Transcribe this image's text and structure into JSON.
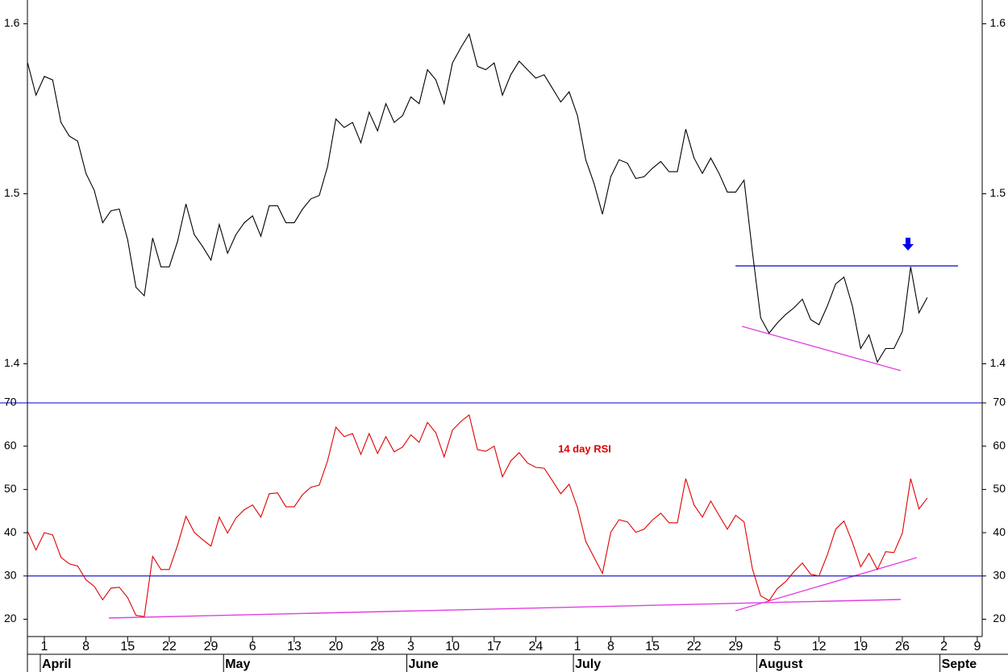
{
  "chart_data": [
    {
      "type": "line",
      "panel": "price",
      "color": "#000000",
      "values": [
        1.577,
        1.558,
        1.569,
        1.567,
        1.542,
        1.534,
        1.531,
        1.512,
        1.502,
        1.483,
        1.49,
        1.491,
        1.473,
        1.445,
        1.44,
        1.474,
        1.457,
        1.457,
        1.472,
        1.494,
        1.476,
        1.469,
        1.461,
        1.482,
        1.465,
        1.476,
        1.483,
        1.487,
        1.475,
        1.493,
        1.493,
        1.483,
        1.483,
        1.491,
        1.497,
        1.499,
        1.516,
        1.544,
        1.539,
        1.542,
        1.53,
        1.548,
        1.537,
        1.553,
        1.542,
        1.546,
        1.557,
        1.553,
        1.573,
        1.567,
        1.553,
        1.577,
        1.586,
        1.594,
        1.575,
        1.573,
        1.577,
        1.558,
        1.57,
        1.578,
        1.573,
        1.568,
        1.57,
        1.562,
        1.554,
        1.56,
        1.546,
        1.52,
        1.506,
        1.488,
        1.51,
        1.52,
        1.518,
        1.509,
        1.51,
        1.515,
        1.519,
        1.513,
        1.513,
        1.538,
        1.521,
        1.512,
        1.521,
        1.512,
        1.501,
        1.501,
        1.508,
        1.466,
        1.427,
        1.418,
        1.424,
        1.429,
        1.433,
        1.438,
        1.426,
        1.423,
        1.434,
        1.447,
        1.451,
        1.434,
        1.409,
        1.417,
        1.401,
        1.409,
        1.409,
        1.419,
        1.457,
        1.43,
        1.439,
        null,
        null,
        null,
        null,
        null,
        null
      ],
      "ylim": [
        1.377,
        1.614
      ],
      "yticks": [
        1.4,
        1.5,
        1.6
      ]
    },
    {
      "type": "line",
      "panel": "rsi",
      "color": "#e00000",
      "annotation": "14 day RSI",
      "values": [
        40.3,
        36,
        40,
        39.5,
        34.3,
        32.8,
        32.3,
        29.1,
        27.6,
        24.5,
        27.2,
        27.4,
        25,
        20.9,
        20.6,
        34.5,
        31.5,
        31.5,
        37.1,
        43.8,
        40.1,
        38.4,
        36.9,
        43.6,
        39.9,
        43.4,
        45.3,
        46.4,
        43.6,
        49,
        49.2,
        46,
        46,
        48.8,
        50.5,
        51,
        56.6,
        64.4,
        62.2,
        62.9,
        58.1,
        62.9,
        58.3,
        62.2,
        58.7,
        59.8,
        62.6,
        60.9,
        65.5,
        63.1,
        57.5,
        63.7,
        65.7,
        67.2,
        59.2,
        58.8,
        60,
        52.9,
        56.6,
        58.5,
        56.1,
        55.1,
        54.9,
        52,
        49,
        51.2,
        45.8,
        38,
        34.3,
        30.6,
        40.1,
        43,
        42.5,
        40.1,
        40.8,
        42.9,
        44.5,
        42.3,
        42.3,
        52.5,
        46.4,
        43.6,
        47.3,
        44,
        40.8,
        44,
        42.5,
        31.7,
        25.4,
        24.3,
        27.1,
        28.7,
        31,
        33,
        30.4,
        30,
        34.9,
        40.8,
        42.7,
        37.8,
        32.1,
        35.2,
        31.5,
        35.6,
        35.4,
        39.9,
        52.5,
        45.5,
        48,
        null,
        null,
        null,
        null,
        null,
        null
      ],
      "ylim": [
        16,
        70
      ],
      "yticks": [
        20,
        30,
        40,
        50,
        60,
        70
      ],
      "guide_lines": [
        70,
        30
      ],
      "guide_color": "#0000cc",
      "categories": [
        null,
        null,
        "1",
        null,
        null,
        null,
        null,
        "8",
        null,
        null,
        null,
        null,
        "15",
        null,
        null,
        null,
        null,
        "22",
        null,
        null,
        null,
        null,
        "29",
        null,
        null,
        null,
        null,
        "6",
        null,
        null,
        null,
        null,
        "13",
        null,
        null,
        null,
        null,
        "20",
        null,
        null,
        null,
        null,
        "28",
        null,
        null,
        null,
        "3",
        null,
        null,
        null,
        null,
        "10",
        null,
        null,
        null,
        null,
        "17",
        null,
        null,
        null,
        null,
        "24",
        null,
        null,
        null,
        null,
        "1",
        null,
        null,
        null,
        "8",
        null,
        null,
        null,
        null,
        "15",
        null,
        null,
        null,
        null,
        "22",
        null,
        null,
        null,
        null,
        "29",
        null,
        null,
        null,
        null,
        "5",
        null,
        null,
        null,
        null,
        "12",
        null,
        null,
        null,
        null,
        "19",
        null,
        null,
        null,
        null,
        "26",
        null,
        null,
        null,
        null,
        "2",
        null,
        null,
        null,
        "9"
      ],
      "month_labels": [
        null,
        null,
        "April",
        null,
        null,
        null,
        null,
        null,
        null,
        null,
        null,
        null,
        null,
        null,
        null,
        null,
        null,
        null,
        null,
        null,
        null,
        null,
        null,
        null,
        "May",
        null,
        null,
        null,
        null,
        null,
        null,
        null,
        null,
        null,
        null,
        null,
        null,
        null,
        null,
        null,
        null,
        null,
        null,
        null,
        null,
        null,
        "June",
        null,
        null,
        null,
        null,
        null,
        null,
        null,
        null,
        null,
        null,
        null,
        null,
        null,
        null,
        null,
        null,
        null,
        null,
        null,
        "July",
        null,
        null,
        null,
        null,
        null,
        null,
        null,
        null,
        null,
        null,
        null,
        null,
        null,
        null,
        null,
        null,
        null,
        null,
        null,
        null,
        null,
        "August",
        null,
        null,
        null,
        null,
        null,
        null,
        null,
        null,
        null,
        null,
        null,
        null,
        null,
        null,
        null,
        null,
        null,
        null,
        null,
        null,
        null,
        "Septe",
        null,
        null,
        null,
        null
      ]
    }
  ]
}
